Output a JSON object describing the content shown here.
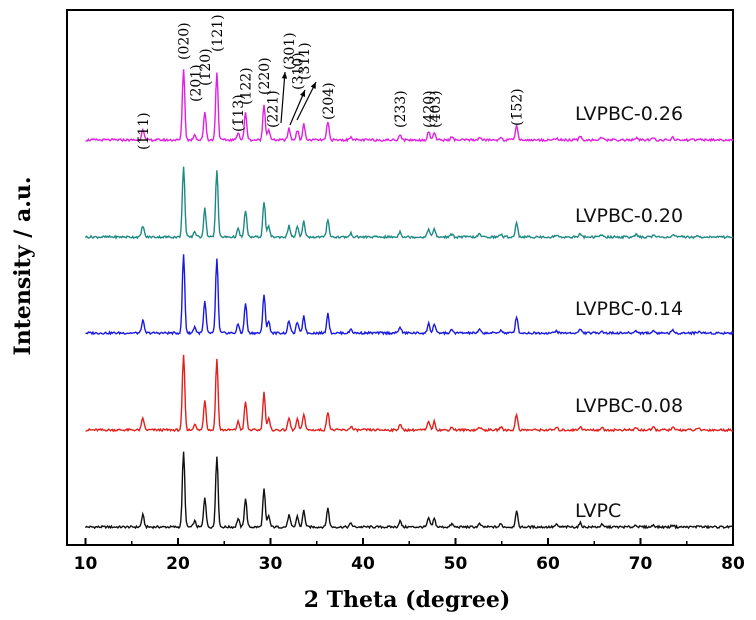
{
  "chart_data": {
    "type": "line",
    "title": "",
    "xlabel": "2 Theta (degree)",
    "ylabel": "Intensity / a.u.",
    "xlim": [
      8,
      80
    ],
    "xticks": [
      10,
      20,
      30,
      40,
      50,
      60,
      70,
      80
    ],
    "yticks_shown": false,
    "grid": false,
    "legend": "none",
    "peaks": [
      {
        "x": 16.2,
        "h": 0.16
      },
      {
        "x": 20.6,
        "h": 1.0
      },
      {
        "x": 21.8,
        "h": 0.08
      },
      {
        "x": 22.9,
        "h": 0.4
      },
      {
        "x": 24.2,
        "h": 0.95
      },
      {
        "x": 26.5,
        "h": 0.11
      },
      {
        "x": 27.3,
        "h": 0.38
      },
      {
        "x": 29.3,
        "h": 0.5
      },
      {
        "x": 29.8,
        "h": 0.15
      },
      {
        "x": 32.0,
        "h": 0.16
      },
      {
        "x": 32.9,
        "h": 0.14
      },
      {
        "x": 33.6,
        "h": 0.22
      },
      {
        "x": 36.2,
        "h": 0.25
      },
      {
        "x": 38.7,
        "h": 0.05
      },
      {
        "x": 44.0,
        "h": 0.08
      },
      {
        "x": 47.1,
        "h": 0.12
      },
      {
        "x": 47.7,
        "h": 0.11
      },
      {
        "x": 49.6,
        "h": 0.04
      },
      {
        "x": 52.6,
        "h": 0.04
      },
      {
        "x": 54.9,
        "h": 0.04
      },
      {
        "x": 56.6,
        "h": 0.21
      },
      {
        "x": 60.9,
        "h": 0.03
      },
      {
        "x": 63.5,
        "h": 0.05
      },
      {
        "x": 65.8,
        "h": 0.03
      },
      {
        "x": 69.5,
        "h": 0.03
      },
      {
        "x": 71.4,
        "h": 0.03
      },
      {
        "x": 73.5,
        "h": 0.03
      },
      {
        "x": 76.3,
        "h": 0.02
      }
    ],
    "series": [
      {
        "name": "LVPC",
        "color": "#111111",
        "scale": 1.0
      },
      {
        "name": "LVPBC-0.08",
        "color": "#e0201c",
        "scale": 1.0
      },
      {
        "name": "LVPBC-0.14",
        "color": "#1a1adf",
        "scale": 1.05
      },
      {
        "name": "LVPBC-0.20",
        "color": "#1f8a84",
        "scale": 0.95
      },
      {
        "name": "LVPBC-0.26",
        "color": "#e020e0",
        "scale": 0.95
      }
    ],
    "peak_labels": [
      {
        "text": "(1̄11)",
        "x": 16.2
      },
      {
        "text": "(020)",
        "x": 20.6
      },
      {
        "text": "(201)",
        "x": 21.9
      },
      {
        "text": "(120)",
        "x": 22.9
      },
      {
        "text": "(121)",
        "x": 24.2
      },
      {
        "text": "(1̄13)",
        "x": 26.5
      },
      {
        "text": "(122)",
        "x": 27.3
      },
      {
        "text": "(220)",
        "x": 29.3
      },
      {
        "text": "(221)",
        "x": 30.2
      },
      {
        "text": "(301)",
        "x": 32.0
      },
      {
        "text": "(310)",
        "x": 32.9
      },
      {
        "text": "(311)",
        "x": 33.6
      },
      {
        "text": "(204)",
        "x": 36.2
      },
      {
        "text": "(2̄33)",
        "x": 44.0
      },
      {
        "text": "(420)",
        "x": 47.1
      },
      {
        "text": "(4̄03)",
        "x": 47.8
      },
      {
        "text": "(1̄52)",
        "x": 56.6
      }
    ]
  }
}
